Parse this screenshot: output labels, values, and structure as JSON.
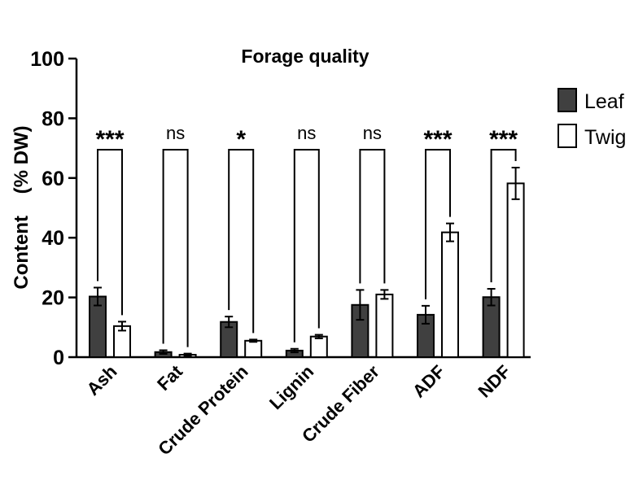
{
  "chart_data": {
    "type": "bar",
    "title": "Forage quality",
    "ylabel": "Content    (% DW)",
    "xlabel": "",
    "ylim": [
      0,
      100
    ],
    "yticks": [
      0,
      20,
      40,
      60,
      80,
      100
    ],
    "categories": [
      "Ash",
      "Fat",
      "Crude Protein",
      "Lignin",
      "Crude Fiber",
      "ADF",
      "NDF"
    ],
    "series": [
      {
        "name": "Leaf",
        "color": "#404040",
        "values": [
          20.3,
          1.7,
          11.8,
          2.2,
          17.5,
          14.2,
          20.1
        ],
        "errors": [
          3.0,
          0.6,
          1.8,
          0.6,
          5.0,
          3.0,
          2.8
        ]
      },
      {
        "name": "Twig",
        "color": "#ffffff",
        "values": [
          10.4,
          0.8,
          5.5,
          6.9,
          21.0,
          41.8,
          58.2
        ],
        "errors": [
          1.5,
          0.4,
          0.4,
          0.6,
          1.5,
          3.0,
          5.3
        ]
      }
    ],
    "significance": [
      "***",
      "ns",
      "*",
      "ns",
      "ns",
      "***",
      "***"
    ],
    "legend_position": "top-right",
    "grid": false
  }
}
